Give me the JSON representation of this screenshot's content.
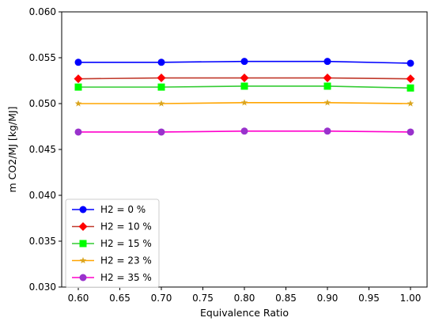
{
  "chart_data": {
    "type": "line",
    "xlabel": "Equivalence Ratio",
    "ylabel": "m CO2/MJ [kg/MJ]",
    "xlim": [
      0.58,
      1.02
    ],
    "ylim": [
      0.03,
      0.06
    ],
    "x_ticks": [
      "0.60",
      "0.65",
      "0.70",
      "0.75",
      "0.80",
      "0.85",
      "0.90",
      "0.95",
      "1.00"
    ],
    "y_ticks": [
      "0.030",
      "0.035",
      "0.040",
      "0.045",
      "0.050",
      "0.055",
      "0.060"
    ],
    "grid": false,
    "legend_position": "lower-left",
    "x": [
      0.6,
      0.7,
      0.8,
      0.9,
      1.0
    ],
    "series": [
      {
        "name": "H2 = 0 %",
        "values": [
          0.0545,
          0.0545,
          0.0546,
          0.0546,
          0.0544
        ],
        "color": "#0000ff",
        "fill": "#0000ff",
        "marker": "circle"
      },
      {
        "name": "H2 = 10 %",
        "values": [
          0.0527,
          0.0528,
          0.0528,
          0.0528,
          0.0527
        ],
        "color": "#c0392b",
        "fill": "#ff0000",
        "marker": "diamond"
      },
      {
        "name": "H2 = 15 %",
        "values": [
          0.0518,
          0.0518,
          0.0519,
          0.0519,
          0.0517
        ],
        "color": "#33cc33",
        "fill": "#00ff00",
        "marker": "square"
      },
      {
        "name": "H2 = 23 %",
        "values": [
          0.05,
          0.05,
          0.0501,
          0.0501,
          0.05
        ],
        "color": "#ffa500",
        "fill": "#daa520",
        "marker": "star"
      },
      {
        "name": "H2 = 35 %",
        "values": [
          0.0469,
          0.0469,
          0.047,
          0.047,
          0.0469
        ],
        "color": "#ff00cc",
        "fill": "#9932cc",
        "marker": "circle"
      }
    ]
  }
}
